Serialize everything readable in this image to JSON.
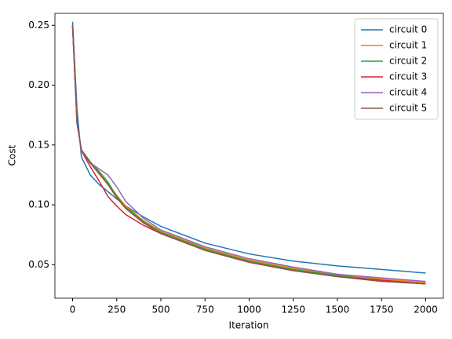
{
  "chart_data": {
    "type": "line",
    "xlabel": "Iteration",
    "ylabel": "Cost",
    "x": [
      0,
      25,
      50,
      100,
      150,
      200,
      250,
      300,
      400,
      500,
      750,
      1000,
      1250,
      1500,
      1750,
      2000
    ],
    "series": [
      {
        "name": "circuit 0",
        "color": "#1f77b4",
        "values": [
          0.253,
          0.18,
          0.14,
          0.125,
          0.117,
          0.111,
          0.105,
          0.099,
          0.09,
          0.082,
          0.068,
          0.059,
          0.053,
          0.049,
          0.046,
          0.043
        ]
      },
      {
        "name": "circuit 1",
        "color": "#ff7f0e",
        "values": [
          0.25,
          0.17,
          0.145,
          0.135,
          0.127,
          0.118,
          0.108,
          0.099,
          0.087,
          0.078,
          0.064,
          0.054,
          0.047,
          0.042,
          0.038,
          0.035
        ]
      },
      {
        "name": "circuit 2",
        "color": "#2ca02c",
        "values": [
          0.249,
          0.168,
          0.146,
          0.136,
          0.128,
          0.119,
          0.107,
          0.098,
          0.086,
          0.077,
          0.063,
          0.053,
          0.046,
          0.041,
          0.037,
          0.034
        ]
      },
      {
        "name": "circuit 3",
        "color": "#d62728",
        "values": [
          0.25,
          0.17,
          0.145,
          0.132,
          0.12,
          0.107,
          0.099,
          0.092,
          0.083,
          0.076,
          0.062,
          0.052,
          0.045,
          0.04,
          0.037,
          0.034
        ]
      },
      {
        "name": "circuit 4",
        "color": "#9467bd",
        "values": [
          0.25,
          0.17,
          0.145,
          0.135,
          0.13,
          0.125,
          0.115,
          0.103,
          0.089,
          0.079,
          0.065,
          0.055,
          0.048,
          0.042,
          0.039,
          0.036
        ]
      },
      {
        "name": "circuit 5",
        "color": "#8c564b",
        "values": [
          0.25,
          0.168,
          0.146,
          0.135,
          0.126,
          0.117,
          0.106,
          0.097,
          0.085,
          0.076,
          0.062,
          0.052,
          0.045,
          0.04,
          0.036,
          0.034
        ]
      }
    ],
    "xlim": [
      -100,
      2100
    ],
    "ylim": [
      0.022,
      0.26
    ],
    "xticks": [
      0,
      250,
      500,
      750,
      1000,
      1250,
      1500,
      1750,
      2000
    ],
    "yticks": [
      {
        "value": 0.05,
        "label": "0.05"
      },
      {
        "value": 0.1,
        "label": "0.10"
      },
      {
        "value": 0.15,
        "label": "0.15"
      },
      {
        "value": 0.2,
        "label": "0.20"
      },
      {
        "value": 0.25,
        "label": "0.25"
      }
    ],
    "legend": "upper right"
  }
}
